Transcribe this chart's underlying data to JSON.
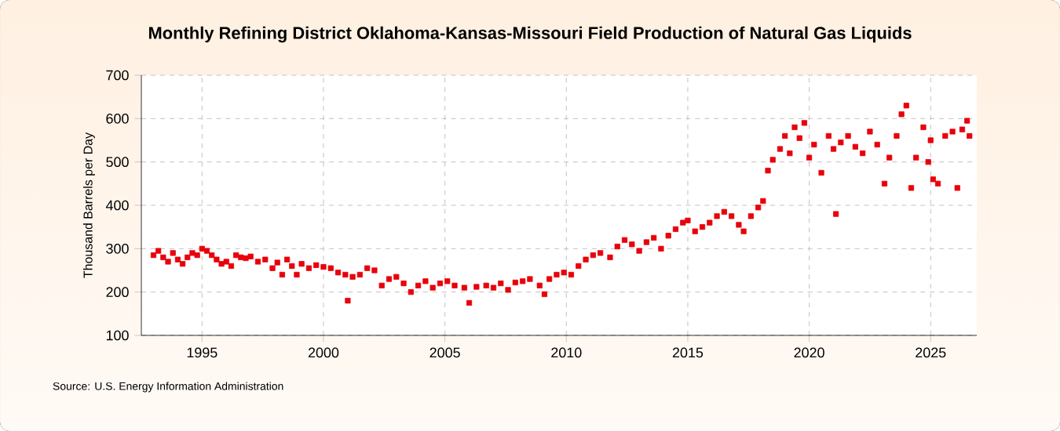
{
  "chart_data": {
    "type": "scatter",
    "title": "Monthly Refining District Oklahoma-Kansas-Missouri Field Production of Natural Gas Liquids",
    "ylabel": "Thousand Barrels per Day",
    "annotations": [
      "Source: U.S. Energy Information Administration"
    ],
    "color": "#e8000b",
    "marker": "square",
    "grid": true,
    "xlim": [
      1992.5,
      2026.9
    ],
    "ylim": [
      100,
      700
    ],
    "xticks": [
      1995,
      2000,
      2005,
      2010,
      2015,
      2020,
      2025
    ],
    "yticks": [
      100,
      200,
      300,
      400,
      500,
      600,
      700
    ],
    "x": [
      1993.0,
      1993.2,
      1993.4,
      1993.6,
      1993.8,
      1994.0,
      1994.2,
      1994.4,
      1994.6,
      1994.8,
      1995.0,
      1995.2,
      1995.4,
      1995.6,
      1995.8,
      1996.0,
      1996.2,
      1996.4,
      1996.6,
      1996.8,
      1997.0,
      1997.3,
      1997.6,
      1997.9,
      1998.1,
      1998.3,
      1998.5,
      1998.7,
      1998.9,
      1999.1,
      1999.4,
      1999.7,
      2000.0,
      2000.3,
      2000.6,
      2000.9,
      2001.0,
      2001.2,
      2001.5,
      2001.8,
      2002.1,
      2002.4,
      2002.7,
      2003.0,
      2003.3,
      2003.6,
      2003.9,
      2004.2,
      2004.5,
      2004.8,
      2005.1,
      2005.4,
      2005.8,
      2006.0,
      2006.3,
      2006.7,
      2007.0,
      2007.3,
      2007.6,
      2007.9,
      2008.2,
      2008.5,
      2008.9,
      2009.1,
      2009.3,
      2009.6,
      2009.9,
      2010.2,
      2010.5,
      2010.8,
      2011.1,
      2011.4,
      2011.8,
      2012.1,
      2012.4,
      2012.7,
      2013.0,
      2013.3,
      2013.6,
      2013.9,
      2014.2,
      2014.5,
      2014.8,
      2015.0,
      2015.3,
      2015.6,
      2015.9,
      2016.2,
      2016.5,
      2016.8,
      2017.1,
      2017.3,
      2017.6,
      2017.9,
      2018.1,
      2018.3,
      2018.5,
      2018.8,
      2019.0,
      2019.2,
      2019.4,
      2019.6,
      2019.8,
      2020.0,
      2020.2,
      2020.5,
      2020.8,
      2021.0,
      2021.1,
      2021.3,
      2021.6,
      2021.9,
      2022.2,
      2022.5,
      2022.8,
      2023.1,
      2023.3,
      2023.6,
      2023.8,
      2024.0,
      2024.2,
      2024.4,
      2024.7,
      2024.9,
      2025.0,
      2025.1,
      2025.3,
      2025.6,
      2025.9,
      2026.1,
      2026.3,
      2026.5,
      2026.6
    ],
    "values": [
      285,
      295,
      280,
      270,
      290,
      275,
      265,
      280,
      290,
      285,
      300,
      295,
      285,
      275,
      265,
      270,
      260,
      285,
      280,
      278,
      282,
      270,
      275,
      255,
      268,
      240,
      275,
      260,
      240,
      265,
      255,
      262,
      258,
      255,
      245,
      240,
      180,
      235,
      240,
      255,
      250,
      215,
      230,
      235,
      220,
      200,
      215,
      225,
      210,
      220,
      225,
      215,
      210,
      175,
      212,
      215,
      210,
      220,
      205,
      222,
      225,
      230,
      215,
      195,
      230,
      240,
      245,
      240,
      260,
      275,
      285,
      290,
      280,
      305,
      320,
      310,
      295,
      315,
      325,
      300,
      330,
      345,
      360,
      365,
      340,
      350,
      360,
      375,
      385,
      375,
      355,
      340,
      375,
      395,
      410,
      480,
      505,
      530,
      560,
      520,
      580,
      555,
      590,
      510,
      540,
      475,
      560,
      530,
      380,
      545,
      560,
      535,
      520,
      570,
      540,
      450,
      510,
      560,
      610,
      630,
      440,
      510,
      580,
      500,
      550,
      460,
      450,
      560,
      570,
      440,
      575,
      595,
      560
    ]
  }
}
